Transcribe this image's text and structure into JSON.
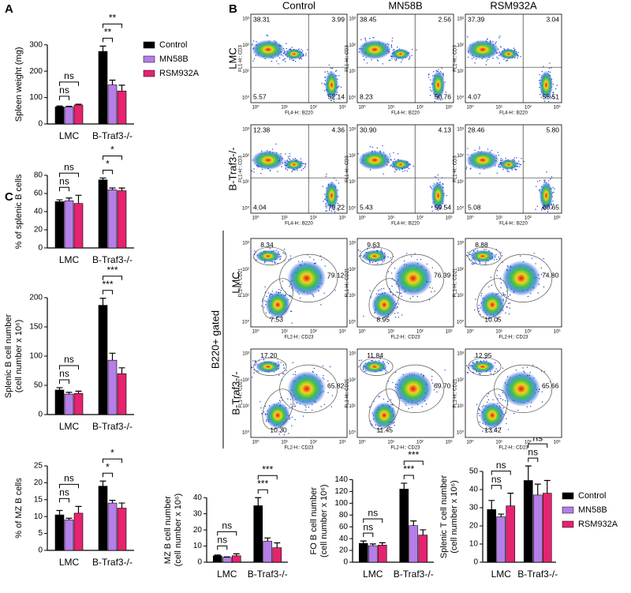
{
  "chart_data": [
    {
      "type": "bar",
      "panel": "A",
      "ylabel": [
        "Spleen weight (mg)"
      ],
      "categories": [
        "LMC",
        "B-Traf3-/-"
      ],
      "series": [
        {
          "name": "Control",
          "color": "#000000",
          "values": [
            65,
            275
          ],
          "errors": [
            3,
            20
          ]
        },
        {
          "name": "MN58B",
          "color": "#b57ee8",
          "values": [
            64,
            148
          ],
          "errors": [
            3,
            18
          ]
        },
        {
          "name": "RSM932A",
          "color": "#e5236f",
          "values": [
            72,
            125
          ],
          "errors": [
            3,
            22
          ]
        }
      ],
      "ylim": [
        0,
        350
      ],
      "yticks": [
        0,
        100,
        200,
        300
      ],
      "legend": true,
      "significance": [
        {
          "label": "ns",
          "category": "LMC",
          "series": "MN58B"
        },
        {
          "label": "ns",
          "category": "LMC",
          "series": "RSM932A"
        },
        {
          "label": "**",
          "category": "B-Traf3-/-",
          "series": "MN58B"
        },
        {
          "label": "**",
          "category": "B-Traf3-/-",
          "series": "RSM932A"
        }
      ]
    },
    {
      "type": "bar",
      "panel": "C",
      "ylabel": [
        "% of splenic B cells"
      ],
      "categories": [
        "LMC",
        "B-Traf3-/-"
      ],
      "series": [
        {
          "name": "Control",
          "color": "#000000",
          "values": [
            51,
            75
          ],
          "errors": [
            2,
            2
          ]
        },
        {
          "name": "MN58B",
          "color": "#b57ee8",
          "values": [
            52,
            64
          ],
          "errors": [
            3,
            2
          ]
        },
        {
          "name": "RSM932A",
          "color": "#e5236f",
          "values": [
            49,
            63
          ],
          "errors": [
            9,
            3
          ]
        }
      ],
      "ylim": [
        0,
        100
      ],
      "yticks": [
        0,
        20,
        40,
        60,
        80
      ],
      "legend": false,
      "significance": [
        {
          "label": "ns",
          "category": "LMC",
          "series": "MN58B"
        },
        {
          "label": "ns",
          "category": "LMC",
          "series": "RSM932A"
        },
        {
          "label": "*",
          "category": "B-Traf3-/-",
          "series": "MN58B"
        },
        {
          "label": "*",
          "category": "B-Traf3-/-",
          "series": "RSM932A"
        }
      ]
    },
    {
      "type": "bar",
      "ylabel": [
        "Splenic B cell number",
        "(cell number x 10⁶)"
      ],
      "categories": [
        "LMC",
        "B-Traf3-/-"
      ],
      "series": [
        {
          "name": "Control",
          "color": "#000000",
          "values": [
            42,
            187
          ],
          "errors": [
            4,
            12
          ]
        },
        {
          "name": "MN58B",
          "color": "#b57ee8",
          "values": [
            35,
            93
          ],
          "errors": [
            3,
            12
          ]
        },
        {
          "name": "RSM932A",
          "color": "#e5236f",
          "values": [
            36,
            70
          ],
          "errors": [
            4,
            10
          ]
        }
      ],
      "ylim": [
        0,
        250
      ],
      "yticks": [
        0,
        50,
        100,
        150,
        200
      ],
      "legend": false,
      "significance": [
        {
          "label": "ns",
          "category": "LMC",
          "series": "MN58B"
        },
        {
          "label": "ns",
          "category": "LMC",
          "series": "RSM932A"
        },
        {
          "label": "***",
          "category": "B-Traf3-/-",
          "series": "MN58B"
        },
        {
          "label": "***",
          "category": "B-Traf3-/-",
          "series": "RSM932A"
        }
      ]
    },
    {
      "type": "bar",
      "ylabel": [
        "% of MZ B cells"
      ],
      "categories": [
        "LMC",
        "B-Traf3-/-"
      ],
      "series": [
        {
          "name": "Control",
          "color": "#000000",
          "values": [
            10.5,
            19
          ],
          "errors": [
            1.3,
            1.5
          ]
        },
        {
          "name": "MN58B",
          "color": "#b57ee8",
          "values": [
            9,
            14
          ],
          "errors": [
            0.5,
            0.8
          ]
        },
        {
          "name": "RSM932A",
          "color": "#e5236f",
          "values": [
            11,
            12.5
          ],
          "errors": [
            2,
            1.5
          ]
        }
      ],
      "ylim": [
        0,
        25
      ],
      "yticks": [
        0,
        5,
        10,
        15,
        20,
        25
      ],
      "legend": false,
      "significance": [
        {
          "label": "ns",
          "category": "LMC",
          "series": "MN58B"
        },
        {
          "label": "ns",
          "category": "LMC",
          "series": "RSM932A"
        },
        {
          "label": "*",
          "category": "B-Traf3-/-",
          "series": "MN58B"
        },
        {
          "label": "*",
          "category": "B-Traf3-/-",
          "series": "RSM932A"
        }
      ]
    },
    {
      "type": "bar",
      "ylabel": [
        "MZ B cell number",
        "(cell number x 10⁶)"
      ],
      "categories": [
        "LMC",
        "B-Traf3-/-"
      ],
      "series": [
        {
          "name": "Control",
          "color": "#000000",
          "values": [
            4,
            35
          ],
          "errors": [
            0.5,
            5
          ]
        },
        {
          "name": "MN58B",
          "color": "#b57ee8",
          "values": [
            3,
            13
          ],
          "errors": [
            0.3,
            2
          ]
        },
        {
          "name": "RSM932A",
          "color": "#e5236f",
          "values": [
            4,
            9
          ],
          "errors": [
            1.2,
            3
          ]
        }
      ],
      "ylim": [
        0,
        45
      ],
      "yticks": [
        0,
        10,
        20,
        30,
        40
      ],
      "legend": false,
      "significance": [
        {
          "label": "ns",
          "category": "LMC",
          "series": "MN58B"
        },
        {
          "label": "ns",
          "category": "LMC",
          "series": "RSM932A"
        },
        {
          "label": "***",
          "category": "B-Traf3-/-",
          "series": "MN58B"
        },
        {
          "label": "***",
          "category": "B-Traf3-/-",
          "series": "RSM932A"
        }
      ]
    },
    {
      "type": "bar",
      "ylabel": [
        "FO B cell number",
        "(cell number x 10⁶)"
      ],
      "categories": [
        "LMC",
        "B-Traf3-/-"
      ],
      "series": [
        {
          "name": "Control",
          "color": "#000000",
          "values": [
            32,
            124
          ],
          "errors": [
            4,
            10
          ]
        },
        {
          "name": "MN58B",
          "color": "#b57ee8",
          "values": [
            28,
            62
          ],
          "errors": [
            3,
            8
          ]
        },
        {
          "name": "RSM932A",
          "color": "#e5236f",
          "values": [
            29,
            46
          ],
          "errors": [
            4,
            9
          ]
        }
      ],
      "ylim": [
        0,
        150
      ],
      "yticks": [
        0,
        20,
        40,
        60,
        80,
        100,
        120,
        140
      ],
      "legend": false,
      "significance": [
        {
          "label": "ns",
          "category": "LMC",
          "series": "MN58B"
        },
        {
          "label": "ns",
          "category": "LMC",
          "series": "RSM932A"
        },
        {
          "label": "***",
          "category": "B-Traf3-/-",
          "series": "MN58B"
        },
        {
          "label": "***",
          "category": "B-Traf3-/-",
          "series": "RSM932A"
        }
      ]
    },
    {
      "type": "bar",
      "ylabel": [
        "Splenic T cell number",
        "(cell number x 10⁶)"
      ],
      "categories": [
        "LMC",
        "B-Traf3-/-"
      ],
      "series": [
        {
          "name": "Control",
          "color": "#000000",
          "values": [
            29,
            45
          ],
          "errors": [
            5,
            8
          ]
        },
        {
          "name": "MN58B",
          "color": "#b57ee8",
          "values": [
            25,
            37
          ],
          "errors": [
            1.5,
            6
          ]
        },
        {
          "name": "RSM932A",
          "color": "#e5236f",
          "values": [
            31,
            38
          ],
          "errors": [
            7,
            7
          ]
        }
      ],
      "ylim": [
        0,
        60
      ],
      "yticks": [
        0,
        10,
        20,
        30,
        40,
        50
      ],
      "legend": true,
      "significance": [
        {
          "label": "ns",
          "category": "LMC",
          "series": "MN58B"
        },
        {
          "label": "ns",
          "category": "LMC",
          "series": "RSM932A"
        },
        {
          "label": "ns",
          "category": "B-Traf3-/-",
          "series": "MN58B"
        },
        {
          "label": "ns",
          "category": "B-Traf3-/-",
          "series": "RSM932A"
        }
      ]
    }
  ],
  "flow": {
    "panel": "B",
    "columns": [
      "Control",
      "MN58B",
      "RSM932A"
    ],
    "gated_label": "B220+ gated",
    "ticks": [
      "10⁰",
      "10¹",
      "10²",
      "10³"
    ],
    "rows": [
      {
        "label": "LMC",
        "x_label": "FL4-H:: B220",
        "y_label": "FL1-H:: CD3",
        "plots": [
          [
            "38.31",
            "3.99",
            "5.57",
            "52.14"
          ],
          [
            "38.45",
            "2.56",
            "8.23",
            "50.76"
          ],
          [
            "37.39",
            "3.04",
            "4.07",
            "55.51"
          ]
        ]
      },
      {
        "label": "B-Traf3-/-",
        "x_label": "FL4-H:: B220",
        "y_label": "FL1-H:: CD3",
        "plots": [
          [
            "12.38",
            "4.36",
            "4.04",
            "79.22"
          ],
          [
            "30.90",
            "4.13",
            "5.43",
            "59.54"
          ],
          [
            "28.46",
            "5.80",
            "5.08",
            "60.65"
          ]
        ]
      },
      {
        "label": "LMC",
        "x_label": "FL2-H:: CD23",
        "y_label": "FL1-H:: CD21",
        "plots": [
          [
            "8.34",
            "79.12",
            "7.53"
          ],
          [
            "9.63",
            "76.39",
            "8.95"
          ],
          [
            "8.88",
            "74.80",
            "10.05"
          ]
        ]
      },
      {
        "label": "B-Traf3-/-",
        "x_label": "FL2-H:: CD23",
        "y_label": "FL1-H:: CD21",
        "plots": [
          [
            "17.20",
            "65.82",
            "10.30"
          ],
          [
            "11.84",
            "69.70",
            "11.45"
          ],
          [
            "12.95",
            "65.66",
            "13.42"
          ]
        ]
      }
    ]
  }
}
